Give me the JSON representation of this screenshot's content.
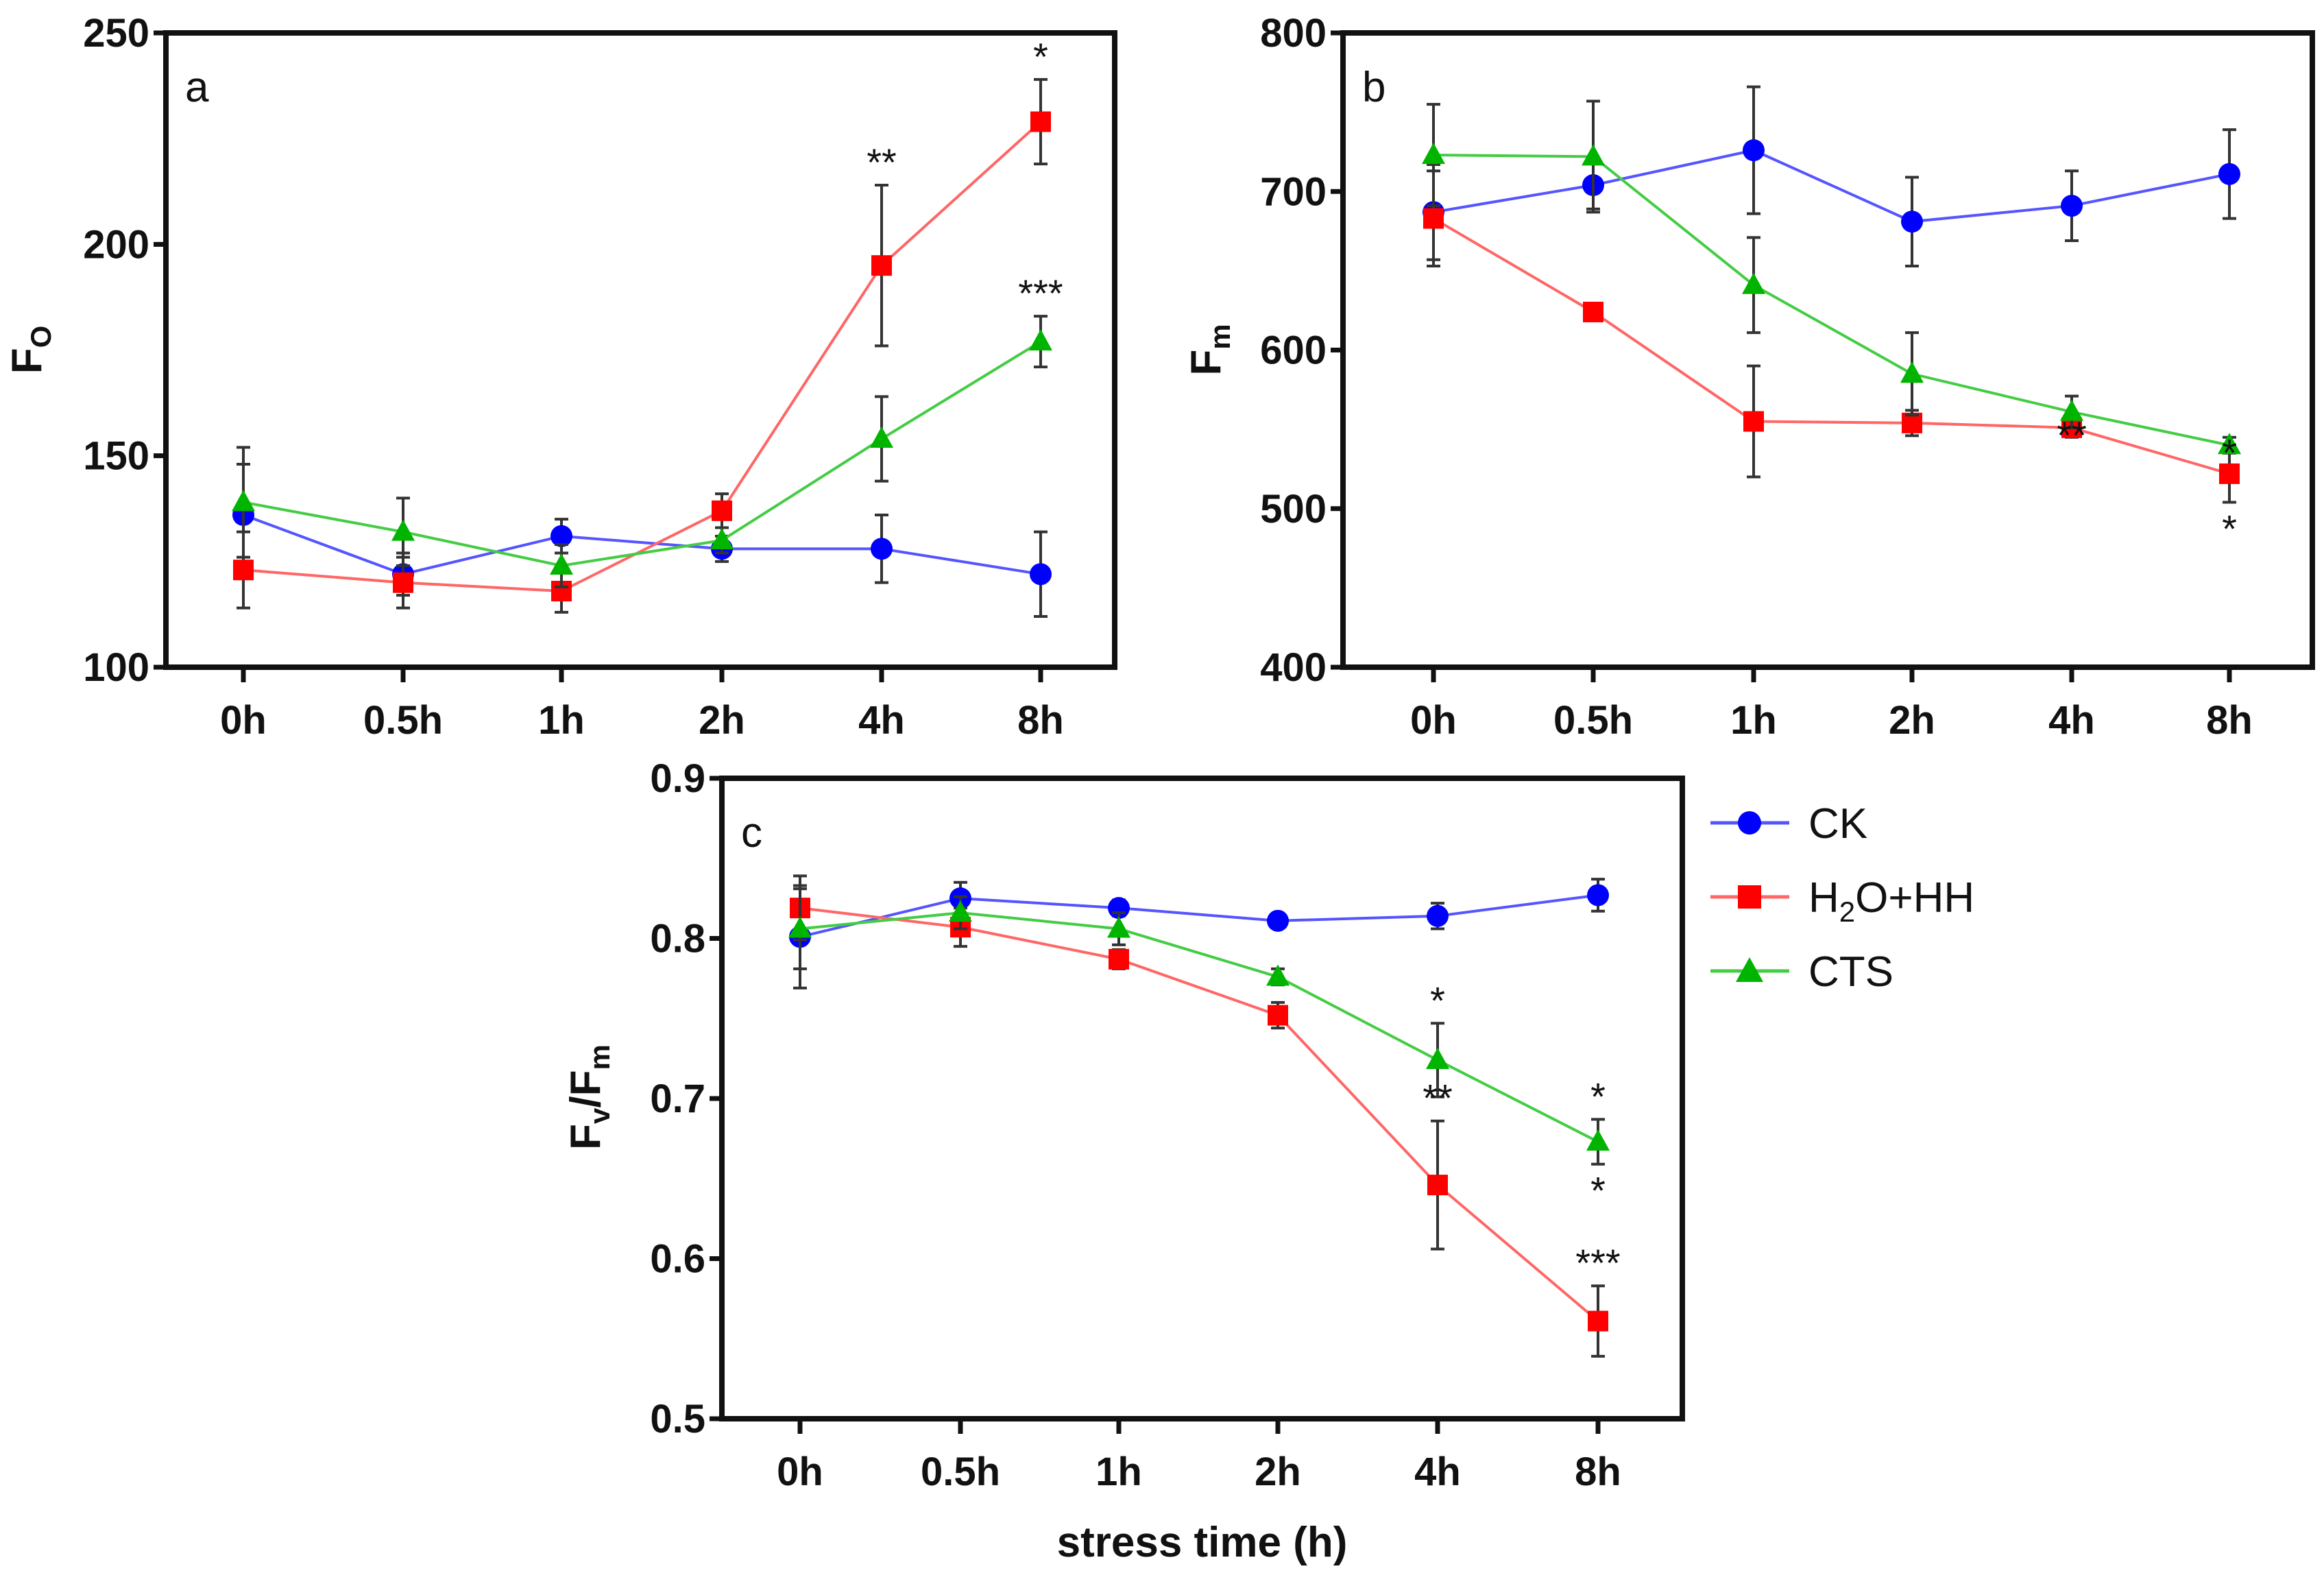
{
  "chart_data": [
    {
      "type": "line",
      "panel_label": "a",
      "ylabel": "F",
      "ylabel_sub": "O",
      "xlabel": "",
      "categories": [
        "0h",
        "0.5h",
        "1h",
        "2h",
        "4h",
        "8h"
      ],
      "ylim": [
        100,
        250
      ],
      "yticks": [
        100,
        150,
        200,
        250
      ],
      "grid": false,
      "series": [
        {
          "name": "CK",
          "values": [
            136,
            122,
            131,
            128,
            128,
            122
          ],
          "errors": [
            12,
            5,
            4,
            3,
            8,
            10
          ]
        },
        {
          "name": "H2O+HH",
          "values": [
            123,
            120,
            118,
            137,
            195,
            229
          ],
          "errors": [
            9,
            6,
            5,
            4,
            19,
            10
          ]
        },
        {
          "name": "CTS",
          "values": [
            139,
            132,
            124,
            130,
            154,
            177
          ],
          "errors": [
            13,
            8,
            5,
            3,
            10,
            6
          ]
        }
      ],
      "annotations": [
        {
          "text": "**",
          "category": "4h",
          "series": "H2O+HH",
          "position": "above"
        },
        {
          "text": "*",
          "category": "8h",
          "series": "H2O+HH",
          "position": "above"
        },
        {
          "text": "***",
          "category": "8h",
          "series": "CTS",
          "position": "above"
        }
      ]
    },
    {
      "type": "line",
      "panel_label": "b",
      "ylabel": "F",
      "ylabel_sub": "m",
      "xlabel": "",
      "categories": [
        "0h",
        "0.5h",
        "1h",
        "2h",
        "4h",
        "8h"
      ],
      "ylim": [
        400,
        800
      ],
      "yticks": [
        400,
        500,
        600,
        700,
        800
      ],
      "grid": false,
      "series": [
        {
          "name": "CK",
          "values": [
            687,
            704,
            726,
            681,
            691,
            711
          ],
          "errors": [
            30,
            15,
            40,
            28,
            22,
            28
          ]
        },
        {
          "name": "H2O+HH",
          "values": [
            683,
            624,
            555,
            554,
            551,
            522
          ],
          "errors": [
            30,
            4,
            35,
            8,
            6,
            18
          ]
        },
        {
          "name": "CTS",
          "values": [
            723,
            722,
            641,
            585,
            561,
            540
          ],
          "errors": [
            32,
            35,
            30,
            26,
            10,
            5
          ]
        }
      ],
      "annotations": [
        {
          "text": "**",
          "category": "4h",
          "series": "H2O+HH",
          "position": "on"
        },
        {
          "text": "*",
          "category": "8h",
          "series": "CTS",
          "position": "on"
        },
        {
          "text": "*",
          "category": "8h",
          "series": "H2O+HH",
          "position": "below"
        }
      ]
    },
    {
      "type": "line",
      "panel_label": "c",
      "ylabel": "F",
      "ylabel_sub": "v",
      "ylabel_rest": "/F",
      "ylabel_rest_sub": "m",
      "xlabel": "stress time (h)",
      "categories": [
        "0h",
        "0.5h",
        "1h",
        "2h",
        "4h",
        "8h"
      ],
      "ylim": [
        0.5,
        0.9
      ],
      "yticks": [
        "0.5",
        "0.6",
        "0.7",
        "0.8",
        "0.9"
      ],
      "grid": false,
      "series": [
        {
          "name": "CK",
          "values": [
            0.801,
            0.825,
            0.819,
            0.811,
            0.814,
            0.827
          ],
          "errors": [
            0.032,
            0.01,
            0.005,
            0.004,
            0.008,
            0.01
          ]
        },
        {
          "name": "H2O+HH",
          "values": [
            0.819,
            0.807,
            0.787,
            0.752,
            0.646,
            0.561
          ],
          "errors": [
            0.02,
            0.012,
            0.006,
            0.008,
            0.04,
            0.022
          ]
        },
        {
          "name": "CTS",
          "values": [
            0.806,
            0.816,
            0.806,
            0.776,
            0.724,
            0.673
          ],
          "errors": [
            0.025,
            0.01,
            0.01,
            0.005,
            0.023,
            0.014
          ]
        }
      ],
      "annotations": [
        {
          "text": "*",
          "category": "4h",
          "series": "CTS",
          "position": "above"
        },
        {
          "text": "**",
          "category": "4h",
          "series": "H2O+HH",
          "position": "above"
        },
        {
          "text": "*",
          "category": "8h",
          "series": "CTS",
          "position": "above"
        },
        {
          "text": "*",
          "category": "8h",
          "series": "CTS",
          "position": "below"
        },
        {
          "text": "***",
          "category": "8h",
          "series": "H2O+HH",
          "position": "above"
        }
      ]
    }
  ],
  "legend": {
    "placement": "right",
    "items": [
      {
        "label": "CK",
        "marker": "circle",
        "color": "#0000ff"
      },
      {
        "label_main": "H",
        "label_sub": "2",
        "label_rest": "O+HH",
        "label": "H2O+HH",
        "marker": "square",
        "color": "#ff0000"
      },
      {
        "label": "CTS",
        "marker": "triangle",
        "color": "#00b400"
      }
    ]
  },
  "colors": {
    "CK": "#0000ff",
    "H2O+HH": "#ff0000",
    "CTS": "#00b400",
    "CK_line": "#5555ff",
    "H2O+HH_line": "#ff6666",
    "CTS_line": "#44cc44",
    "error": "#333333"
  }
}
